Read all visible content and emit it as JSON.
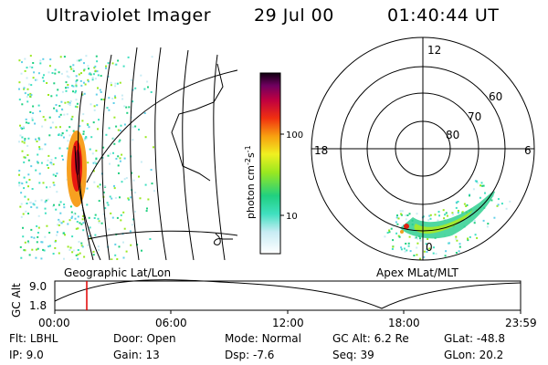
{
  "header": {
    "title": "Ultraviolet Imager",
    "date": "29 Jul 00",
    "time": "01:40:44 UT"
  },
  "geo_panel": {
    "label": "Geographic Lat/Lon"
  },
  "polar_panel": {
    "label": "Apex MLat/MLT",
    "mlt_labels": {
      "top": "12",
      "left": "18",
      "right": "6",
      "bottom": "0"
    },
    "lat_labels": [
      "60",
      "70",
      "80"
    ]
  },
  "colorbar": {
    "label_main": "photon cm",
    "label_exp1": "-2",
    "label_s": "s",
    "label_exp2": "-1",
    "ticks": [
      "100",
      "10"
    ]
  },
  "altitude_plot": {
    "ylabel": "GC Alt",
    "y_ticks": [
      "9.0",
      "1.8"
    ],
    "x_ticks": [
      "00:00",
      "06:00",
      "12:00",
      "18:00",
      "23:59"
    ],
    "marker_color": "#e00000"
  },
  "info": {
    "flt": {
      "label": "Flt:",
      "value": "LBHL"
    },
    "ip": {
      "label": "IP:",
      "value": "9.0"
    },
    "door": {
      "label": "Door:",
      "value": "Open"
    },
    "gain": {
      "label": "Gain:",
      "value": "13"
    },
    "mode": {
      "label": "Mode:",
      "value": "Normal"
    },
    "dsp": {
      "label": "Dsp:",
      "value": "-7.6"
    },
    "gcalt": {
      "label": "GC Alt:",
      "value": "6.2 Re"
    },
    "seq": {
      "label": "Seq:",
      "value": "39"
    },
    "glat": {
      "label": "GLat:",
      "value": "-48.8"
    },
    "glon": {
      "label": "GLon:",
      "value": "20.2"
    }
  }
}
